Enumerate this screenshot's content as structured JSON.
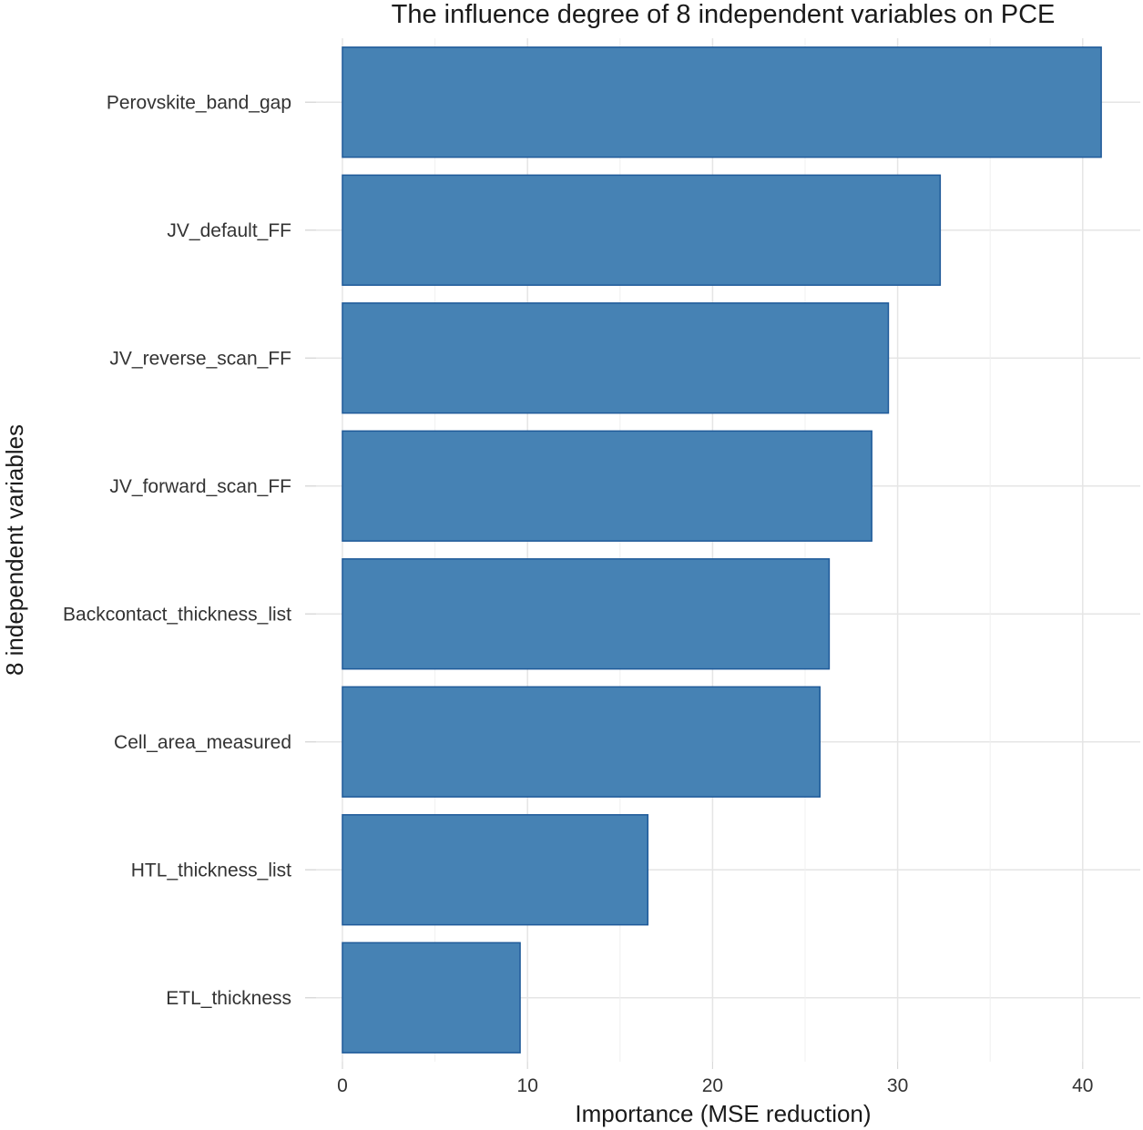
{
  "chart_data": {
    "type": "bar",
    "orientation": "horizontal",
    "title": "The influence degree of 8 independent variables on PCE",
    "xlabel": "Importance (MSE reduction)",
    "ylabel": "8 independent variables",
    "categories": [
      "Perovskite_band_gap",
      "JV_default_FF",
      "JV_reverse_scan_FF",
      "JV_forward_scan_FF",
      "Backcontact_thickness_list",
      "Cell_area_measured",
      "HTL_thickness_list",
      "ETL_thickness"
    ],
    "values": [
      41.0,
      32.3,
      29.5,
      28.6,
      26.3,
      25.8,
      16.5,
      9.6
    ],
    "xlim": [
      0,
      43
    ],
    "xticks": [
      0,
      10,
      20,
      30,
      40
    ],
    "xtick_labels": [
      "0",
      "10",
      "20",
      "30",
      "40"
    ],
    "grid": true,
    "legend": "none",
    "colors": {
      "bar_fill": "#4682B4",
      "bar_stroke": "#1f5a99",
      "grid": "#e5e5e5"
    }
  }
}
